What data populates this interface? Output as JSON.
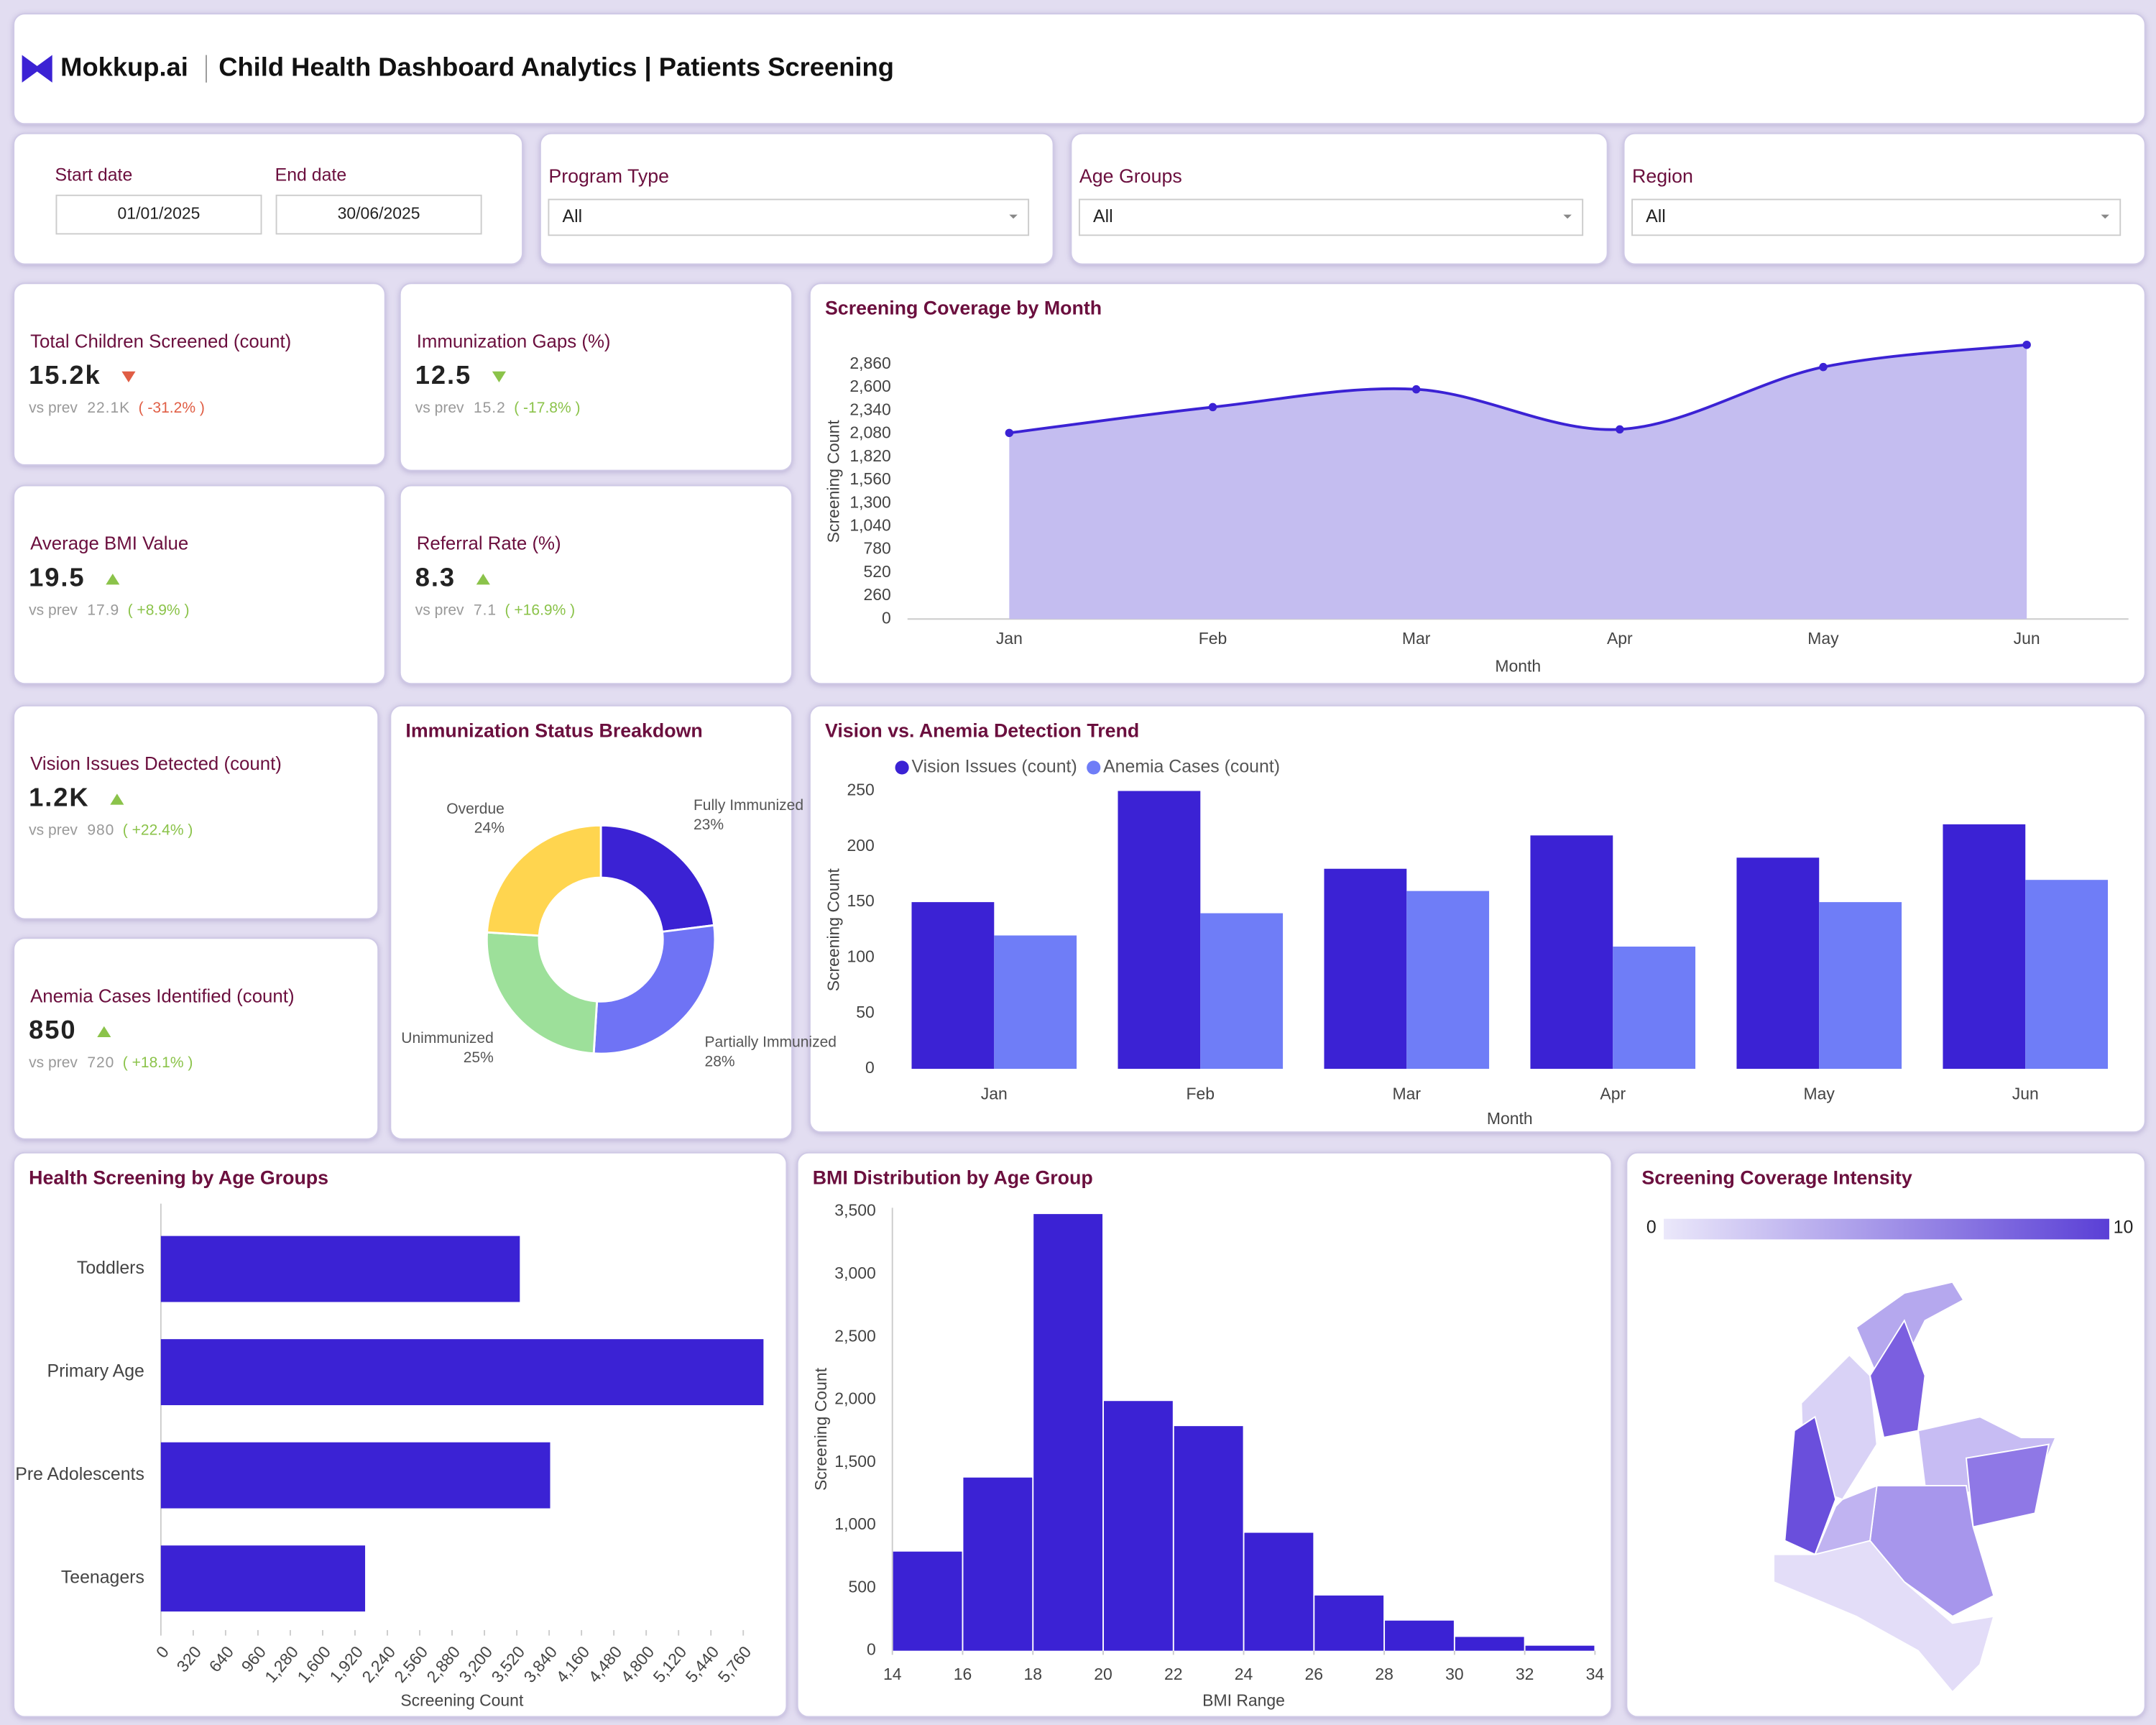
{
  "header": {
    "brand": "Mokkup.ai",
    "title": "Child Health Dashboard Analytics | Patients Screening"
  },
  "filters": {
    "dates": [
      {
        "label": "Start date",
        "value": "01/01/2025"
      },
      {
        "label": "End date",
        "value": "30/06/2025"
      }
    ],
    "dropdowns": [
      {
        "label": "Program Type",
        "value": "All"
      },
      {
        "label": "Age Groups",
        "value": "All"
      },
      {
        "label": "Region",
        "value": "All"
      }
    ]
  },
  "kpis": [
    {
      "title": "Total Children Screened (count)",
      "value": "15.2k",
      "trend": "down",
      "color": "#e05d44",
      "vs_label": "vs prev",
      "prev": "22.1K",
      "change": "( -31.2% )"
    },
    {
      "title": "Immunization Gaps (%)",
      "value": "12.5",
      "trend": "down",
      "color": "#8bc34a",
      "vs_label": "vs prev",
      "prev": "15.2",
      "change": "( -17.8% )"
    },
    {
      "title": "Average BMI Value",
      "value": "19.5",
      "trend": "up",
      "color": "#8bc34a",
      "vs_label": "vs prev",
      "prev": "17.9",
      "change": "( +8.9% )"
    },
    {
      "title": "Referral Rate (%)",
      "value": "8.3",
      "trend": "up",
      "color": "#8bc34a",
      "vs_label": "vs prev",
      "prev": "7.1",
      "change": "( +16.9% )"
    },
    {
      "title": "Vision Issues Detected (count)",
      "value": "1.2K",
      "trend": "up",
      "color": "#8bc34a",
      "vs_label": "vs prev",
      "prev": "980",
      "change": "( +22.4% )"
    },
    {
      "title": "Anemia Cases Identified (count)",
      "value": "850",
      "trend": "up",
      "color": "#8bc34a",
      "vs_label": "vs prev",
      "prev": "720",
      "change": "( +18.1% )"
    }
  ],
  "chart_data": [
    {
      "type": "area",
      "title": "Screening Coverage by Month",
      "xlabel": "Month",
      "ylabel": "Screening Count",
      "color": "#3b22d4",
      "fill": "#c4bdf0",
      "categories": [
        "Jan",
        "Feb",
        "Mar",
        "Apr",
        "May",
        "Jun"
      ],
      "values": [
        2090,
        2380,
        2580,
        2130,
        2830,
        3080
      ],
      "ylim": [
        0,
        3090
      ],
      "yticks": [
        0,
        260,
        520,
        780,
        {
          "value": 1040,
          "label": "1,040"
        },
        {
          "value": 1300,
          "label": "1,300"
        },
        {
          "value": 1560,
          "label": "1,560"
        },
        {
          "value": 1820,
          "label": "1,820"
        },
        {
          "value": 2080,
          "label": "2,080"
        },
        {
          "value": 2340,
          "label": "2,340"
        },
        {
          "value": 2600,
          "label": "2,600"
        },
        {
          "value": 2860,
          "label": "2,860"
        }
      ]
    },
    {
      "type": "donut",
      "title": "Immunization Status Breakdown",
      "categories": [
        "Fully Immunized",
        "Partially Immunized",
        "Unimmunized",
        "Overdue"
      ],
      "values": [
        23,
        28,
        25,
        24
      ],
      "value_labels": [
        "23%",
        "28%",
        "25%",
        "24%"
      ],
      "colors": [
        "#3b22d4",
        "#6f73f5",
        "#9de09a",
        "#ffd54f"
      ]
    },
    {
      "type": "grouped_bar",
      "title": "Vision vs. Anemia Detection Trend",
      "xlabel": "Month",
      "ylabel": "Screening Count",
      "legend": "top-left",
      "categories": [
        "Jan",
        "Feb",
        "Mar",
        "Apr",
        "May",
        "Jun"
      ],
      "series": [
        {
          "name": "Vision Issues (count)",
          "color": "#3b22d4",
          "values": [
            150,
            250,
            180,
            210,
            190,
            220
          ]
        },
        {
          "name": "Anemia Cases (count)",
          "color": "#6f7df7",
          "values": [
            120,
            140,
            160,
            110,
            150,
            170
          ]
        }
      ],
      "ylim": [
        0,
        250
      ],
      "yticks": [
        0,
        50,
        100,
        150,
        200,
        250
      ]
    },
    {
      "type": "hbar",
      "title": "Health Screening by Age Groups",
      "xlabel": "Screening Count",
      "color": "#3b22d4",
      "categories": [
        "Toddlers",
        "Primary Age",
        "Pre Adolescents",
        "Teenagers"
      ],
      "values": [
        3550,
        5960,
        3850,
        2020
      ],
      "xlim": [
        0,
        5970
      ],
      "xticks": [
        0,
        320,
        640,
        960,
        {
          "value": 1280,
          "label": "1,280"
        },
        {
          "value": 1600,
          "label": "1,600"
        },
        {
          "value": 1920,
          "label": "1,920"
        },
        {
          "value": 2240,
          "label": "2,240"
        },
        {
          "value": 2560,
          "label": "2,560"
        },
        {
          "value": 2880,
          "label": "2,880"
        },
        {
          "value": 3200,
          "label": "3,200"
        },
        {
          "value": 3520,
          "label": "3,520"
        },
        {
          "value": 3840,
          "label": "3,840"
        },
        {
          "value": 4160,
          "label": "4,160"
        },
        {
          "value": 4480,
          "label": "4,480"
        },
        {
          "value": 4800,
          "label": "4,800"
        },
        {
          "value": 5120,
          "label": "5,120"
        },
        {
          "value": 5440,
          "label": "5,440"
        },
        {
          "value": 5760,
          "label": "5,760"
        }
      ]
    },
    {
      "type": "histogram",
      "title": "BMI Distribution by Age Group",
      "xlabel": "BMI Range",
      "ylabel": "Screening Count",
      "color": "#3b22d4",
      "bins": [
        14,
        16,
        18,
        20,
        22,
        24,
        26,
        28,
        30,
        32,
        34
      ],
      "values": [
        790,
        1380,
        3480,
        1990,
        1790,
        940,
        440,
        240,
        110,
        40
      ],
      "xlim": [
        14,
        34
      ],
      "xticks": [
        14,
        16,
        18,
        20,
        22,
        24,
        26,
        28,
        30,
        32,
        34
      ],
      "ylim": [
        0,
        3530
      ],
      "yticks": [
        0,
        500,
        {
          "value": 1000,
          "label": "1,000"
        },
        {
          "value": 1500,
          "label": "1,500"
        },
        {
          "value": 2000,
          "label": "2,000"
        },
        {
          "value": 2500,
          "label": "2,500"
        },
        {
          "value": 3000,
          "label": "3,000"
        },
        {
          "value": 3500,
          "label": "3,500"
        }
      ]
    },
    {
      "type": "map",
      "title": "Screening Coverage Intensity",
      "scale": [
        0,
        10
      ],
      "colors": [
        "#ebe8fa",
        "#5a3fd6"
      ]
    }
  ]
}
